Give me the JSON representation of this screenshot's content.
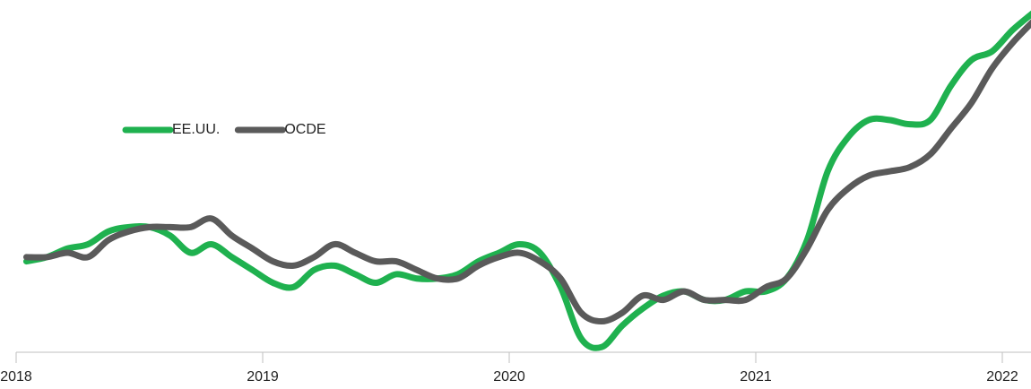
{
  "chart_data": {
    "type": "line",
    "categories": [
      "2018",
      null,
      null,
      null,
      null,
      null,
      null,
      null,
      null,
      null,
      null,
      null,
      "2019",
      null,
      null,
      null,
      null,
      null,
      null,
      null,
      null,
      null,
      null,
      null,
      "2020",
      null,
      null,
      null,
      null,
      null,
      null,
      null,
      null,
      null,
      null,
      null,
      "2021",
      null,
      null,
      null,
      null,
      null,
      null,
      null,
      null,
      null,
      null,
      null,
      "2022",
      null
    ],
    "series": [
      {
        "name": "EE.UU.",
        "color": "#1fb14f",
        "values": [
          2.1,
          2.2,
          2.4,
          2.5,
          2.8,
          2.9,
          2.9,
          2.7,
          2.3,
          2.5,
          2.2,
          1.9,
          1.6,
          1.5,
          1.9,
          2.0,
          1.8,
          1.6,
          1.8,
          1.7,
          1.7,
          1.8,
          2.1,
          2.3,
          2.5,
          2.3,
          1.5,
          0.3,
          0.1,
          0.6,
          1.0,
          1.3,
          1.4,
          1.2,
          1.2,
          1.4,
          1.4,
          1.7,
          2.6,
          4.2,
          5.0,
          5.4,
          5.4,
          5.3,
          5.4,
          6.2,
          6.8,
          7.0,
          7.5,
          7.9
        ]
      },
      {
        "name": "OCDE",
        "color": "#5a5a5a",
        "values": [
          2.2,
          2.2,
          2.3,
          2.2,
          2.6,
          2.8,
          2.9,
          2.9,
          2.9,
          3.1,
          2.7,
          2.4,
          2.1,
          2.0,
          2.2,
          2.5,
          2.3,
          2.1,
          2.1,
          1.9,
          1.7,
          1.7,
          2.0,
          2.2,
          2.3,
          2.1,
          1.7,
          0.9,
          0.7,
          0.9,
          1.3,
          1.2,
          1.4,
          1.2,
          1.2,
          1.2,
          1.5,
          1.7,
          2.4,
          3.3,
          3.8,
          4.1,
          4.2,
          4.3,
          4.6,
          5.2,
          5.8,
          6.6,
          7.2,
          7.7
        ]
      }
    ],
    "ylim": [
      0,
      8.2
    ],
    "legend": "upper left"
  }
}
